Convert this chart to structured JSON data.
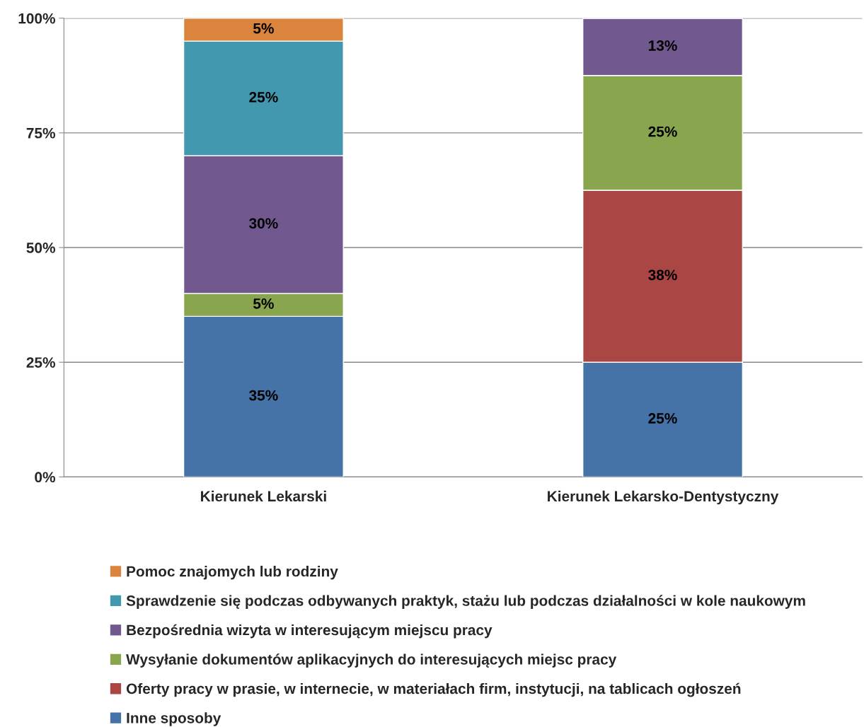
{
  "chart_data": {
    "type": "bar",
    "stacked": true,
    "categories": [
      "Kierunek Lekarski",
      "Kierunek Lekarsko-Dentystyczny"
    ],
    "series": [
      {
        "name": "Inne sposoby",
        "color": "#4572a7",
        "values": [
          35,
          25
        ],
        "value_labels": [
          "35%",
          "25%"
        ]
      },
      {
        "name": "Oferty pracy w prasie, w internecie, w materiałach firm, instytucji, na tablicach ogłoszeń",
        "color": "#aa4643",
        "values": [
          null,
          37.5
        ],
        "value_labels": [
          null,
          "38%"
        ]
      },
      {
        "name": "Wysyłanie dokumentów aplikacyjnych do interesujących miejsc pracy",
        "color": "#89a54e",
        "values": [
          5,
          25
        ],
        "value_labels": [
          "5%",
          "25%"
        ]
      },
      {
        "name": "Bezpośrednia wizyta w interesującym miejscu pracy",
        "color": "#71588f",
        "values": [
          30,
          12.5
        ],
        "value_labels": [
          "30%",
          "13%"
        ]
      },
      {
        "name": "Sprawdzenie się podczas odbywanych praktyk, stażu lub podczas działalności w kole naukowym",
        "color": "#4198af",
        "values": [
          25,
          null
        ],
        "value_labels": [
          "25%",
          null
        ]
      },
      {
        "name": "Pomoc znajomych lub rodziny",
        "color": "#db843d",
        "values": [
          5,
          null
        ],
        "value_labels": [
          "5%",
          null
        ]
      }
    ],
    "ylim": [
      0,
      100
    ],
    "yticks": [
      {
        "value": 0,
        "label": "0%"
      },
      {
        "value": 25,
        "label": "25%"
      },
      {
        "value": 50,
        "label": "50%"
      },
      {
        "value": 75,
        "label": "75%"
      },
      {
        "value": 100,
        "label": "100%"
      }
    ],
    "grid": "y",
    "legend": "bottom"
  }
}
